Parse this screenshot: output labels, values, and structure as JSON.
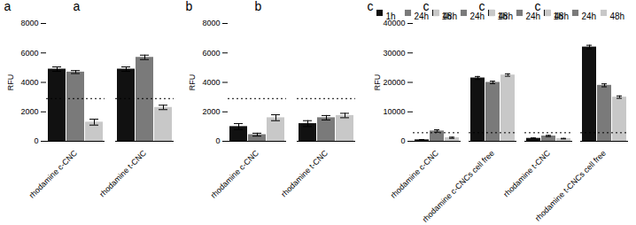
{
  "chart_data": [
    {
      "type": "bar",
      "title": "a",
      "categories": [
        "rhodamine c-CNC",
        "rhodamine t-CNC"
      ],
      "series": [
        {
          "name": "1h",
          "color": "#111111",
          "values": [
            4900,
            4900
          ],
          "errors": [
            150,
            150
          ]
        },
        {
          "name": "24h",
          "color": "#7a7a7a",
          "values": [
            4700,
            5700
          ],
          "errors": [
            100,
            150
          ]
        },
        {
          "name": "48h",
          "color": "#c8c8c8",
          "values": [
            1300,
            2300
          ],
          "errors": [
            200,
            150
          ]
        }
      ],
      "ylabel": "RFU",
      "ylim": [
        0,
        8000
      ],
      "yticks": [
        0,
        2000,
        4000,
        6000,
        8000
      ],
      "reference_line": 2900
    },
    {
      "type": "bar",
      "title": "b",
      "categories": [
        "rhodamine c-CNC",
        "rhodamine t-CNC"
      ],
      "series": [
        {
          "name": "1h",
          "color": "#111111",
          "values": [
            1000,
            1200
          ],
          "errors": [
            200,
            200
          ]
        },
        {
          "name": "24h",
          "color": "#7a7a7a",
          "values": [
            450,
            1600
          ],
          "errors": [
            100,
            150
          ]
        },
        {
          "name": "48h",
          "color": "#c8c8c8",
          "values": [
            1600,
            1750
          ],
          "errors": [
            200,
            150
          ]
        }
      ],
      "ylabel": "RFU",
      "ylim": [
        0,
        8000
      ],
      "yticks": [
        0,
        2000,
        4000,
        6000,
        8000
      ],
      "reference_line": 2900
    },
    {
      "type": "bar",
      "title": "c",
      "categories": [
        "rhodamine c-CNC",
        "rhodamine c-CNCs cell free",
        "rhodamine t-CNC",
        "rhodamine t-CNCs cell free"
      ],
      "series": [
        {
          "name": "1h",
          "color": "#111111",
          "values": [
            500,
            21500,
            1000,
            32000
          ],
          "errors": [
            100,
            500,
            150,
            600
          ]
        },
        {
          "name": "24h",
          "color": "#7a7a7a",
          "values": [
            3500,
            20000,
            1800,
            19000
          ],
          "errors": [
            400,
            400,
            200,
            500
          ]
        },
        {
          "name": "48h",
          "color": "#c8c8c8",
          "values": [
            1200,
            22500,
            900,
            15000
          ],
          "errors": [
            200,
            400,
            100,
            400
          ]
        }
      ],
      "ylabel": "RFU",
      "ylim": [
        0,
        40000
      ],
      "yticks": [
        0,
        10000,
        20000,
        30000,
        40000
      ],
      "reference_line": 2900,
      "legend": "upper right"
    }
  ]
}
